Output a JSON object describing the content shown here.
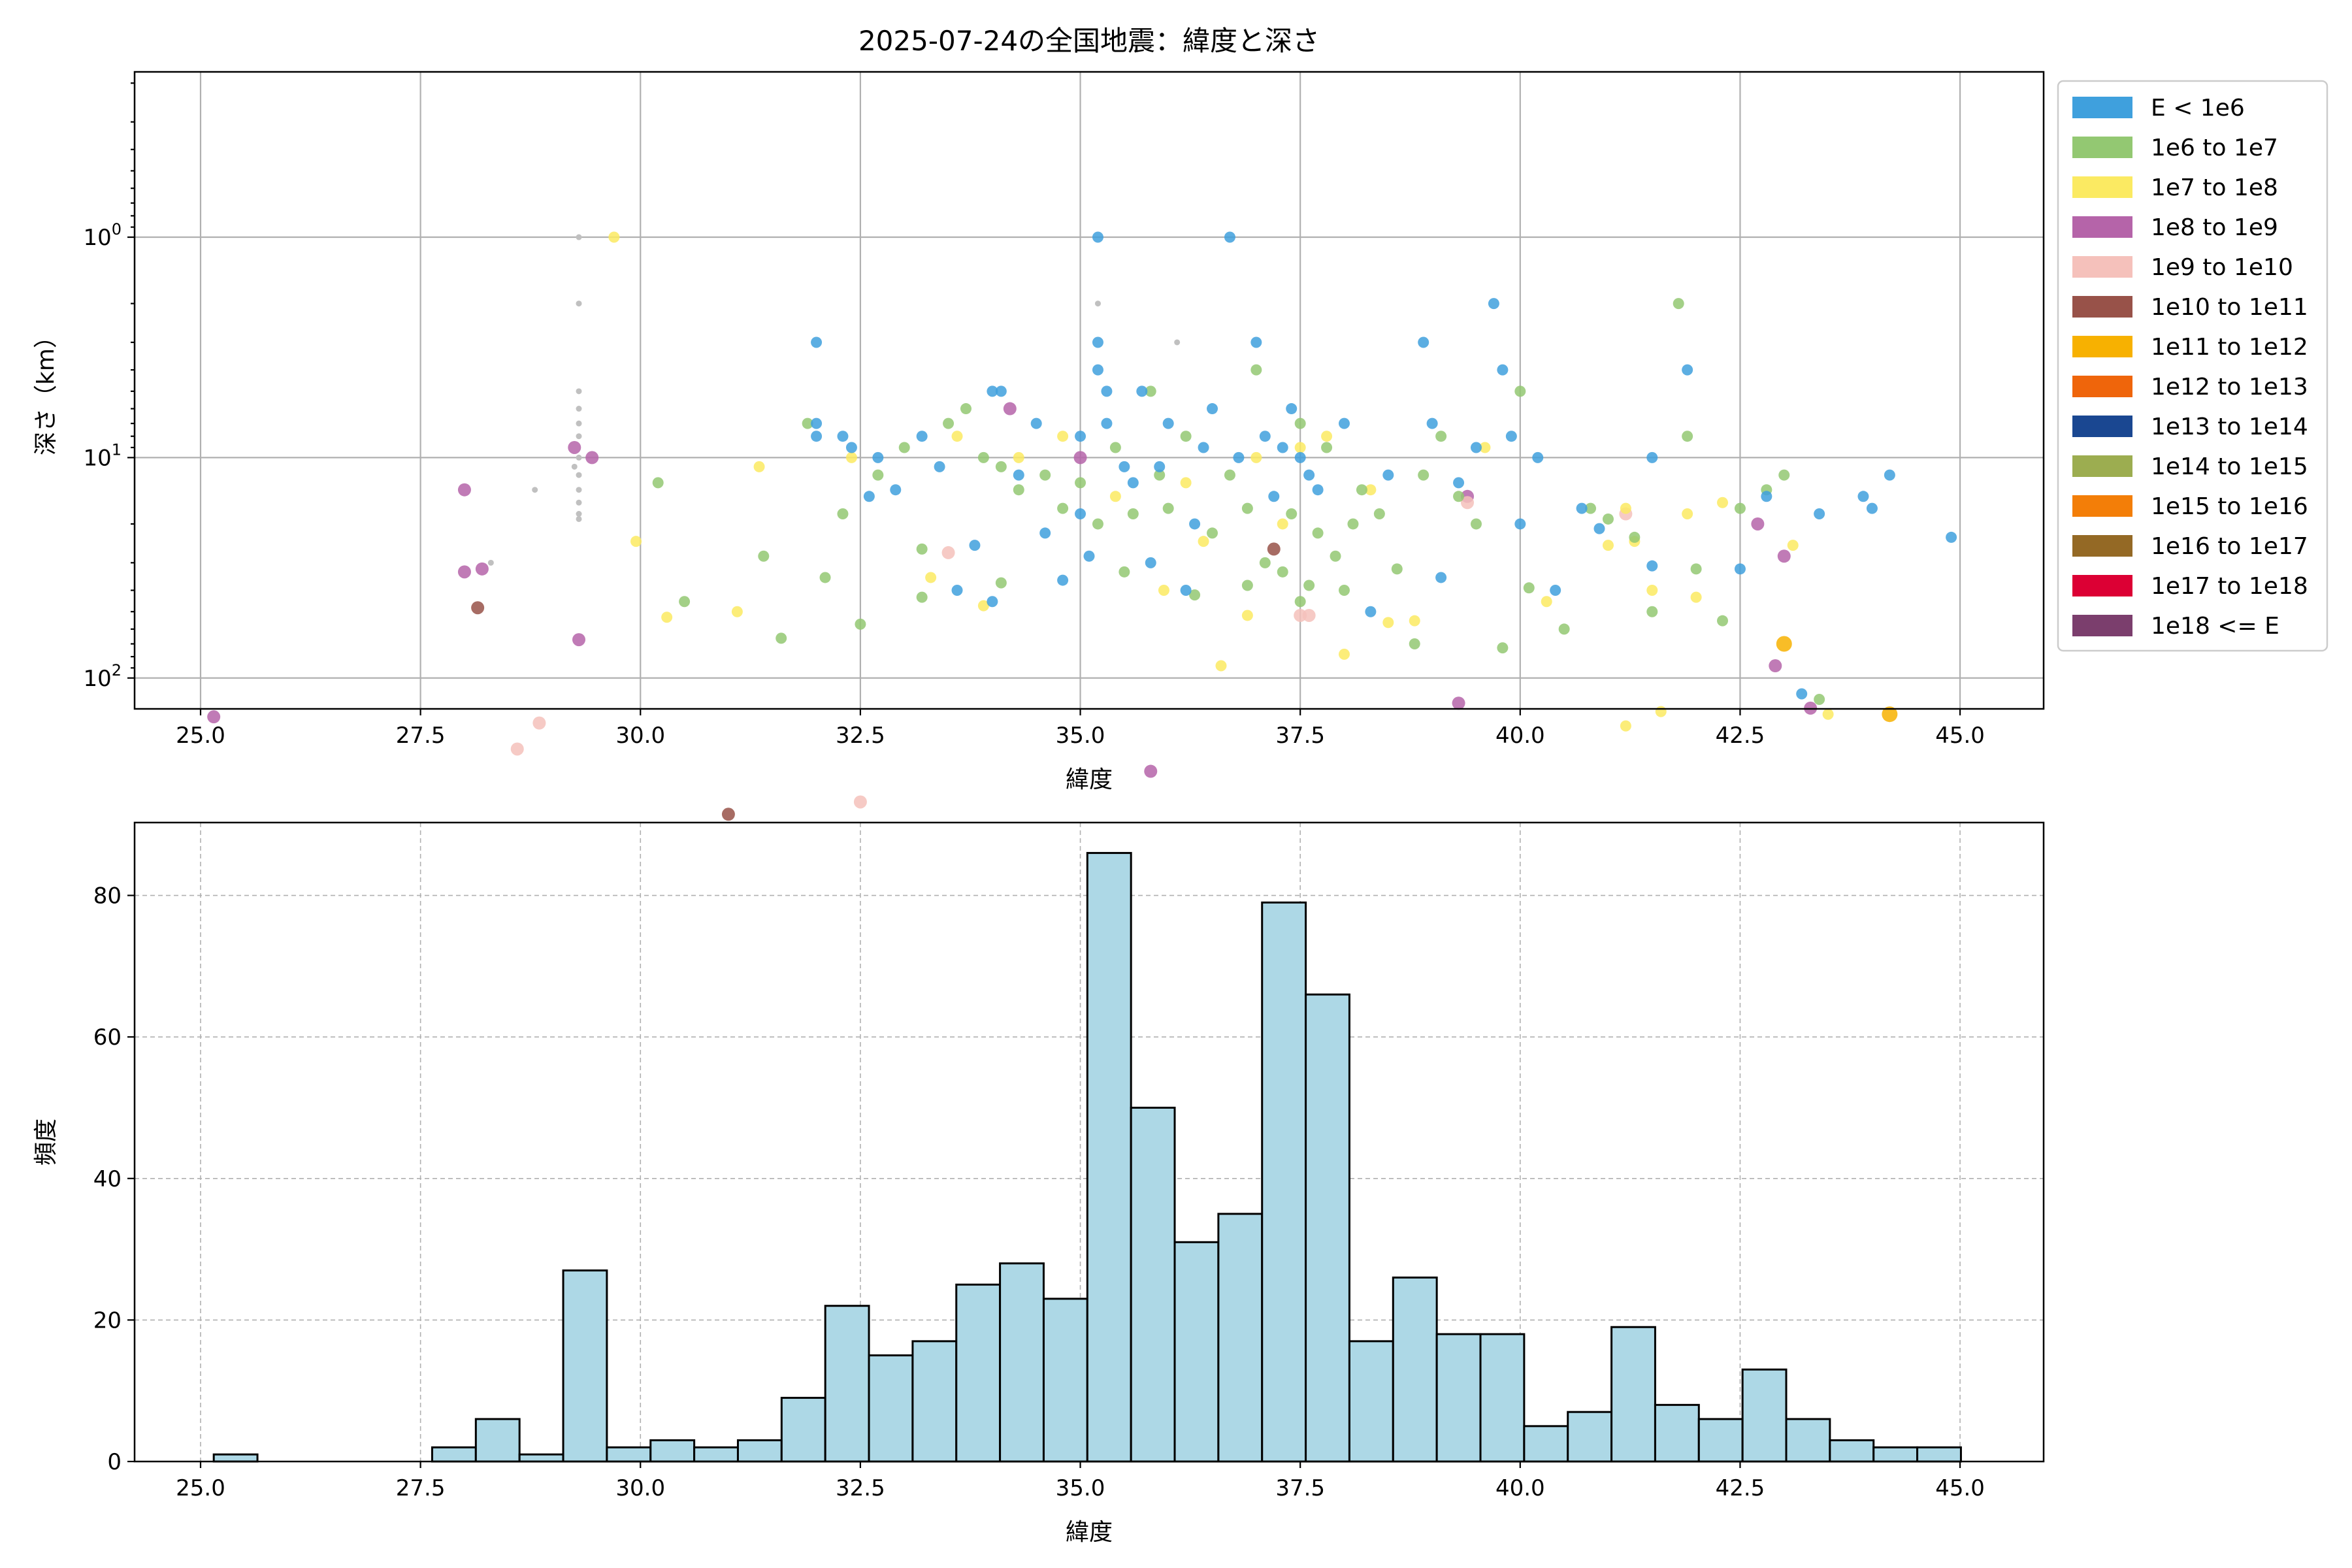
{
  "colors": {
    "classes": [
      "#3fa0dd",
      "#93c872",
      "#fbea62",
      "#b564a9",
      "#f5c1bb",
      "#985249",
      "#f7b101",
      "#ef650b",
      "#1a4791",
      "#9cad50",
      "#f37e08",
      "#946925",
      "#dc0034",
      "#7b3e6d"
    ],
    "bar_fill": "#add8e6",
    "small_gray": "#c0c0c0"
  },
  "chart_data": [
    {
      "type": "scatter",
      "title": "2025-07-24の全国地震：緯度と深さ",
      "xlabel": "緯度",
      "ylabel": "深さ（km）",
      "xlim": [
        24.25,
        45.95
      ],
      "ylim_log10": [
        -0.75,
        2.14
      ],
      "y_scale": "log",
      "y_inverted": true,
      "grid": true,
      "legend_placement": "outside-right-top",
      "x_ticks": [
        "25.0",
        "27.5",
        "30.0",
        "32.5",
        "35.0",
        "37.5",
        "40.0",
        "42.5",
        "45.0"
      ],
      "x_tick_values": [
        25,
        27.5,
        30,
        32.5,
        35,
        37.5,
        40,
        42.5,
        45
      ],
      "y_ticks": [
        {
          "base": "10",
          "exp": "0",
          "value": 1
        },
        {
          "base": "10",
          "exp": "1",
          "value": 10
        },
        {
          "base": "10",
          "exp": "2",
          "value": 100
        }
      ],
      "legend": [
        "E < 1e6",
        "1e6 to 1e7",
        "1e7 to 1e8",
        "1e8 to 1e9",
        "1e9 to 1e10",
        "1e10 to 1e11",
        "1e11 to 1e12",
        "1e12 to 1e13",
        "1e13 to 1e14",
        "1e14 to 1e15",
        "1e15 to 1e16",
        "1e16 to 1e17",
        "1e17 to 1e18",
        "1e18 <= E"
      ],
      "points": [
        [
          25.15,
          150,
          3
        ],
        [
          28.0,
          14,
          3
        ],
        [
          28.0,
          33,
          3
        ],
        [
          28.2,
          32,
          3
        ],
        [
          28.15,
          48,
          5
        ],
        [
          29.3,
          67,
          3
        ],
        [
          29.25,
          9,
          3
        ],
        [
          29.45,
          10,
          3
        ],
        [
          28.6,
          210,
          4
        ],
        [
          28.85,
          160,
          4
        ],
        [
          31.0,
          415,
          5
        ],
        [
          32.5,
          365,
          4
        ],
        [
          34.2,
          6,
          3
        ],
        [
          33.5,
          27,
          4
        ],
        [
          35.0,
          10,
          3
        ],
        [
          37.2,
          26,
          5
        ],
        [
          39.3,
          130,
          3
        ],
        [
          39.4,
          15,
          3
        ],
        [
          39.4,
          16,
          4
        ],
        [
          41.2,
          18,
          4
        ],
        [
          42.7,
          20,
          3
        ],
        [
          42.9,
          88,
          3
        ],
        [
          43.0,
          28,
          3
        ],
        [
          43.0,
          70,
          6
        ],
        [
          43.3,
          137,
          3
        ],
        [
          44.2,
          146,
          6
        ],
        [
          35.8,
          265,
          3
        ],
        [
          37.5,
          52,
          4
        ],
        [
          37.6,
          52,
          4
        ],
        [
          29.7,
          1,
          2
        ],
        [
          29.95,
          24,
          2
        ],
        [
          30.3,
          53,
          2
        ],
        [
          31.1,
          50,
          2
        ],
        [
          31.35,
          11,
          2
        ],
        [
          32.4,
          10,
          2
        ],
        [
          33.3,
          35,
          2
        ],
        [
          33.9,
          47,
          2
        ],
        [
          34.3,
          10,
          2
        ],
        [
          35.4,
          15,
          2
        ],
        [
          35.95,
          40,
          2
        ],
        [
          36.4,
          24,
          2
        ],
        [
          36.6,
          88,
          2
        ],
        [
          36.9,
          52,
          2
        ],
        [
          37.0,
          10,
          2
        ],
        [
          37.3,
          20,
          2
        ],
        [
          37.5,
          9,
          2
        ],
        [
          37.8,
          8,
          2
        ],
        [
          38.0,
          78,
          2
        ],
        [
          38.3,
          14,
          2
        ],
        [
          38.8,
          55,
          2
        ],
        [
          39.6,
          9,
          2
        ],
        [
          40.3,
          45,
          2
        ],
        [
          41.0,
          25,
          2
        ],
        [
          41.2,
          17,
          2
        ],
        [
          41.3,
          24,
          2
        ],
        [
          41.5,
          40,
          2
        ],
        [
          41.6,
          142,
          2
        ],
        [
          41.9,
          18,
          2
        ],
        [
          42.0,
          43,
          2
        ],
        [
          42.3,
          16,
          2
        ],
        [
          43.1,
          25,
          2
        ],
        [
          43.5,
          146,
          2
        ],
        [
          41.2,
          165,
          2
        ],
        [
          38.5,
          56,
          2
        ],
        [
          36.2,
          13,
          2
        ],
        [
          34.8,
          8,
          2
        ],
        [
          33.6,
          8,
          2
        ],
        [
          30.2,
          13,
          1
        ],
        [
          30.5,
          45,
          1
        ],
        [
          31.4,
          28,
          1
        ],
        [
          31.6,
          66,
          1
        ],
        [
          31.9,
          7,
          1
        ],
        [
          32.1,
          35,
          1
        ],
        [
          32.3,
          18,
          1
        ],
        [
          32.5,
          57,
          1
        ],
        [
          32.7,
          12,
          1
        ],
        [
          33.0,
          9,
          1
        ],
        [
          33.2,
          26,
          1
        ],
        [
          33.5,
          7,
          1
        ],
        [
          33.7,
          6,
          1
        ],
        [
          33.9,
          10,
          1
        ],
        [
          34.1,
          11,
          1
        ],
        [
          34.3,
          14,
          1
        ],
        [
          34.6,
          12,
          1
        ],
        [
          34.8,
          17,
          1
        ],
        [
          35.0,
          13,
          1
        ],
        [
          35.2,
          20,
          1
        ],
        [
          35.4,
          9,
          1
        ],
        [
          35.6,
          18,
          1
        ],
        [
          35.8,
          5,
          1
        ],
        [
          35.9,
          12,
          1
        ],
        [
          36.0,
          17,
          1
        ],
        [
          36.2,
          8,
          1
        ],
        [
          36.3,
          42,
          1
        ],
        [
          36.5,
          22,
          1
        ],
        [
          36.7,
          12,
          1
        ],
        [
          36.9,
          17,
          1
        ],
        [
          37.0,
          4,
          1
        ],
        [
          37.1,
          30,
          1
        ],
        [
          37.3,
          33,
          1
        ],
        [
          37.4,
          18,
          1
        ],
        [
          37.5,
          7,
          1
        ],
        [
          37.6,
          38,
          1
        ],
        [
          37.7,
          22,
          1
        ],
        [
          37.8,
          9,
          1
        ],
        [
          37.9,
          28,
          1
        ],
        [
          38.0,
          40,
          1
        ],
        [
          38.2,
          14,
          1
        ],
        [
          38.4,
          18,
          1
        ],
        [
          38.6,
          32,
          1
        ],
        [
          38.8,
          70,
          1
        ],
        [
          38.9,
          12,
          1
        ],
        [
          39.1,
          8,
          1
        ],
        [
          39.3,
          15,
          1
        ],
        [
          39.5,
          20,
          1
        ],
        [
          39.8,
          73,
          1
        ],
        [
          40.0,
          5,
          1
        ],
        [
          40.1,
          39,
          1
        ],
        [
          40.5,
          60,
          1
        ],
        [
          40.8,
          17,
          1
        ],
        [
          41.0,
          19,
          1
        ],
        [
          41.3,
          23,
          1
        ],
        [
          41.5,
          50,
          1
        ],
        [
          41.8,
          2,
          1
        ],
        [
          41.9,
          8,
          1
        ],
        [
          42.0,
          32,
          1
        ],
        [
          42.3,
          55,
          1
        ],
        [
          42.5,
          17,
          1
        ],
        [
          42.8,
          14,
          1
        ],
        [
          43.0,
          12,
          1
        ],
        [
          43.4,
          125,
          1
        ],
        [
          35.5,
          33,
          1
        ],
        [
          36.9,
          38,
          1
        ],
        [
          37.5,
          45,
          1
        ],
        [
          38.1,
          20,
          1
        ],
        [
          34.1,
          37,
          1
        ],
        [
          33.2,
          43,
          1
        ],
        [
          32.0,
          3,
          0
        ],
        [
          32.0,
          7,
          0
        ],
        [
          32.0,
          8,
          0
        ],
        [
          32.3,
          8,
          0
        ],
        [
          32.4,
          9,
          0
        ],
        [
          32.6,
          15,
          0
        ],
        [
          32.7,
          10,
          0
        ],
        [
          32.9,
          14,
          0
        ],
        [
          33.2,
          8,
          0
        ],
        [
          33.4,
          11,
          0
        ],
        [
          33.6,
          40,
          0
        ],
        [
          33.8,
          25,
          0
        ],
        [
          34.0,
          5,
          0
        ],
        [
          34.0,
          45,
          0
        ],
        [
          34.1,
          5,
          0
        ],
        [
          34.3,
          12,
          0
        ],
        [
          34.5,
          7,
          0
        ],
        [
          34.6,
          22,
          0
        ],
        [
          34.8,
          36,
          0
        ],
        [
          35.0,
          8,
          0
        ],
        [
          35.1,
          28,
          0
        ],
        [
          35.2,
          1,
          0
        ],
        [
          35.2,
          3,
          0
        ],
        [
          35.2,
          4,
          0
        ],
        [
          35.3,
          5,
          0
        ],
        [
          35.3,
          7,
          0
        ],
        [
          35.5,
          11,
          0
        ],
        [
          35.6,
          13,
          0
        ],
        [
          35.7,
          5,
          0
        ],
        [
          35.8,
          30,
          0
        ],
        [
          35.9,
          11,
          0
        ],
        [
          36.0,
          7,
          0
        ],
        [
          36.2,
          40,
          0
        ],
        [
          36.4,
          9,
          0
        ],
        [
          36.5,
          6,
          0
        ],
        [
          36.7,
          1,
          0
        ],
        [
          36.8,
          10,
          0
        ],
        [
          37.0,
          3,
          0
        ],
        [
          37.1,
          8,
          0
        ],
        [
          37.3,
          9,
          0
        ],
        [
          37.4,
          6,
          0
        ],
        [
          37.5,
          10,
          0
        ],
        [
          37.6,
          12,
          0
        ],
        [
          37.7,
          14,
          0
        ],
        [
          38.0,
          7,
          0
        ],
        [
          38.3,
          50,
          0
        ],
        [
          38.5,
          12,
          0
        ],
        [
          38.9,
          3,
          0
        ],
        [
          39.0,
          7,
          0
        ],
        [
          39.1,
          35,
          0
        ],
        [
          39.3,
          13,
          0
        ],
        [
          39.5,
          9,
          0
        ],
        [
          39.7,
          2,
          0
        ],
        [
          39.8,
          4,
          0
        ],
        [
          39.9,
          8,
          0
        ],
        [
          40.0,
          20,
          0
        ],
        [
          40.2,
          10,
          0
        ],
        [
          40.4,
          40,
          0
        ],
        [
          40.7,
          17,
          0
        ],
        [
          40.9,
          21,
          0
        ],
        [
          41.5,
          31,
          0
        ],
        [
          41.5,
          10,
          0
        ],
        [
          41.9,
          4,
          0
        ],
        [
          42.5,
          32,
          0
        ],
        [
          42.8,
          15,
          0
        ],
        [
          43.2,
          118,
          0
        ],
        [
          43.4,
          18,
          0
        ],
        [
          43.9,
          15,
          0
        ],
        [
          44.0,
          17,
          0
        ],
        [
          44.2,
          12,
          0
        ],
        [
          44.9,
          23,
          0
        ],
        [
          35.0,
          18,
          0
        ],
        [
          36.3,
          20,
          0
        ],
        [
          37.2,
          15,
          0
        ]
      ],
      "small_points": [
        [
          29.3,
          1
        ],
        [
          29.3,
          2
        ],
        [
          29.3,
          5
        ],
        [
          29.3,
          6
        ],
        [
          29.3,
          7
        ],
        [
          29.3,
          8
        ],
        [
          29.3,
          10
        ],
        [
          29.3,
          12
        ],
        [
          29.3,
          14
        ],
        [
          29.3,
          16
        ],
        [
          29.3,
          18
        ],
        [
          29.3,
          19
        ],
        [
          29.25,
          11
        ],
        [
          28.8,
          14
        ],
        [
          28.3,
          30
        ],
        [
          35.2,
          2
        ],
        [
          36.1,
          3
        ]
      ]
    },
    {
      "type": "bar",
      "xlabel": "緯度",
      "ylabel": "頻度",
      "xlim": [
        24.25,
        45.95
      ],
      "ylim": [
        0,
        90.3
      ],
      "grid": true,
      "x_ticks": [
        "25.0",
        "27.5",
        "30.0",
        "32.5",
        "35.0",
        "37.5",
        "40.0",
        "42.5",
        "45.0"
      ],
      "x_tick_values": [
        25,
        27.5,
        30,
        32.5,
        35,
        37.5,
        40,
        42.5,
        45
      ],
      "y_ticks": [
        "0",
        "20",
        "40",
        "60",
        "80"
      ],
      "y_tick_values": [
        0,
        20,
        40,
        60,
        80
      ],
      "bin_start": 25.15,
      "bin_width": 0.4965,
      "values": [
        1,
        0,
        0,
        0,
        0,
        2,
        6,
        1,
        27,
        2,
        3,
        2,
        3,
        9,
        22,
        15,
        17,
        25,
        28,
        23,
        86,
        50,
        31,
        35,
        79,
        66,
        17,
        26,
        18,
        18,
        5,
        7,
        19,
        8,
        6,
        13,
        6,
        3,
        2,
        2
      ]
    }
  ]
}
